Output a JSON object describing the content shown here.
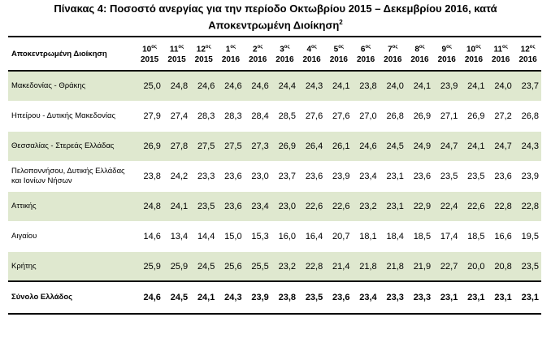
{
  "title": {
    "line1": "Πίνακας 4: Ποσοστό ανεργίας για την περίοδο Οκτωβρίου 2015 – Δεκεμβρίου 2016, κατά",
    "line2": "Αποκεντρωμένη Διοίκηση",
    "footnote_mark": "2"
  },
  "table": {
    "header_label": "Αποκεντρωμένη Διοίκηση",
    "ordinal_suffix": "ος",
    "months": [
      {
        "num": "10",
        "year": "2015"
      },
      {
        "num": "11",
        "year": "2015"
      },
      {
        "num": "12",
        "year": "2015"
      },
      {
        "num": "1",
        "year": "2016"
      },
      {
        "num": "2",
        "year": "2016"
      },
      {
        "num": "3",
        "year": "2016"
      },
      {
        "num": "4",
        "year": "2016"
      },
      {
        "num": "5",
        "year": "2016"
      },
      {
        "num": "6",
        "year": "2016"
      },
      {
        "num": "7",
        "year": "2016"
      },
      {
        "num": "8",
        "year": "2016"
      },
      {
        "num": "9",
        "year": "2016"
      },
      {
        "num": "10",
        "year": "2016"
      },
      {
        "num": "11",
        "year": "2016"
      },
      {
        "num": "12",
        "year": "2016"
      }
    ],
    "rows": [
      {
        "label": "Μακεδονίας - Θράκης",
        "values": [
          "25,0",
          "24,8",
          "24,6",
          "24,6",
          "24,6",
          "24,4",
          "24,3",
          "24,1",
          "23,8",
          "24,0",
          "24,1",
          "23,9",
          "24,1",
          "24,0",
          "23,7"
        ]
      },
      {
        "label": "Ηπείρου - Δυτικής Μακεδονίας",
        "values": [
          "27,9",
          "27,4",
          "28,3",
          "28,3",
          "28,4",
          "28,5",
          "27,6",
          "27,6",
          "27,0",
          "26,8",
          "26,9",
          "27,1",
          "26,9",
          "27,2",
          "26,8"
        ]
      },
      {
        "label": "Θεσσαλίας - Στερεάς Ελλάδας",
        "values": [
          "26,9",
          "27,8",
          "27,5",
          "27,5",
          "27,3",
          "26,9",
          "26,4",
          "26,1",
          "24,6",
          "24,5",
          "24,9",
          "24,7",
          "24,1",
          "24,7",
          "24,3"
        ]
      },
      {
        "label": "Πελοποννήσου, Δυτικής Ελλάδας και Ιονίων Νήσων",
        "values": [
          "23,8",
          "24,2",
          "23,3",
          "23,6",
          "23,0",
          "23,7",
          "23,6",
          "23,9",
          "23,4",
          "23,1",
          "23,6",
          "23,5",
          "23,5",
          "23,6",
          "23,9"
        ]
      },
      {
        "label": "Αττικής",
        "values": [
          "24,8",
          "24,1",
          "23,5",
          "23,6",
          "23,4",
          "23,0",
          "22,6",
          "22,6",
          "23,2",
          "23,1",
          "22,9",
          "22,4",
          "22,6",
          "22,8",
          "22,8"
        ]
      },
      {
        "label": "Αιγαίου",
        "values": [
          "14,6",
          "13,4",
          "14,4",
          "15,0",
          "15,3",
          "16,0",
          "16,4",
          "20,7",
          "18,1",
          "18,4",
          "18,5",
          "17,4",
          "18,5",
          "16,6",
          "19,5"
        ]
      },
      {
        "label": "Κρήτης",
        "values": [
          "25,9",
          "25,9",
          "24,5",
          "25,6",
          "25,5",
          "23,2",
          "22,8",
          "21,4",
          "21,8",
          "21,8",
          "21,9",
          "22,7",
          "20,0",
          "20,8",
          "23,5"
        ]
      }
    ],
    "total": {
      "label": "Σύνολο Ελλάδος",
      "values": [
        "24,6",
        "24,5",
        "24,1",
        "24,3",
        "23,9",
        "23,8",
        "23,5",
        "23,6",
        "23,4",
        "23,3",
        "23,3",
        "23,1",
        "23,1",
        "23,1",
        "23,1"
      ]
    },
    "colors": {
      "shaded_row": "#dfe8cf",
      "border": "#000000"
    }
  }
}
